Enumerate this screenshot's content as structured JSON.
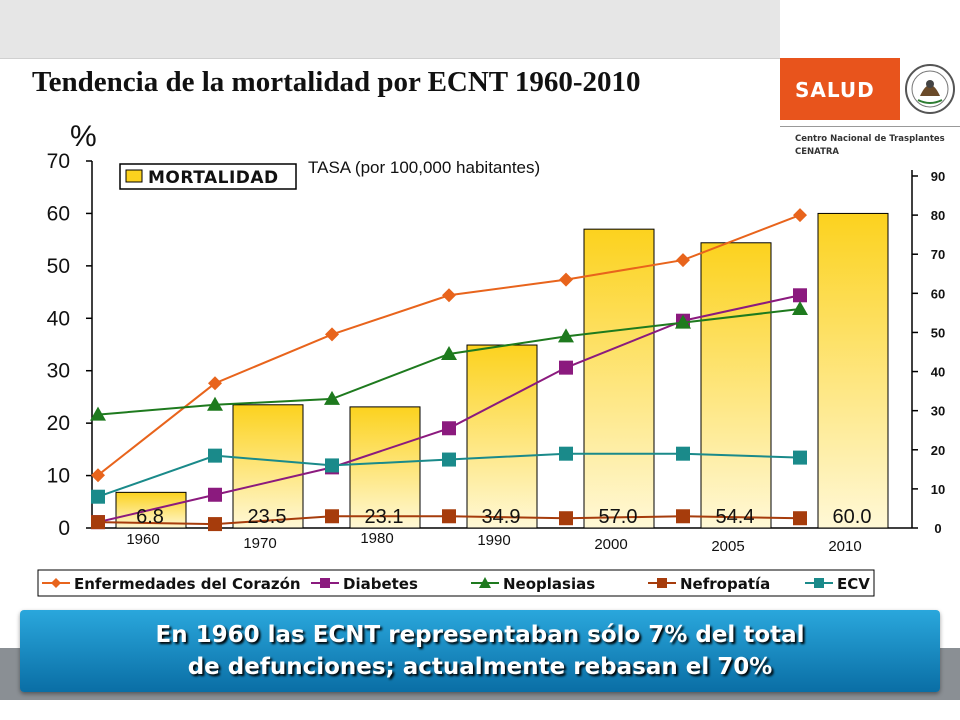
{
  "header": {
    "title": "Tendencia de la mortalidad por ECNT 1960-2010",
    "brand": "SALUD",
    "org_line1": "Centro Nacional de Trasplantes",
    "org_line2": "CENATRA",
    "seal_icon": "coat-of-arms-icon"
  },
  "colors": {
    "bar_top": "#fcd21e",
    "bar_bottom": "#fff8d6",
    "brand_orange": "#e8541c",
    "banner_blue": "#1a8ccc"
  },
  "chart_data": {
    "type": "bar",
    "left_axis_label": "%",
    "right_axis_label": "TASA (por 100,000 habitantes)",
    "categories": [
      "1960",
      "1970",
      "1980",
      "1990",
      "2000",
      "2005",
      "2010"
    ],
    "bar_series": {
      "name": "MORTALIDAD",
      "values": [
        6.8,
        23.5,
        23.1,
        34.9,
        57.0,
        54.4,
        60.0
      ],
      "labels": [
        "6.8",
        "23.5",
        "23.1",
        "34.9",
        "57.0",
        "54.4",
        "60.0"
      ]
    },
    "yleft": {
      "min": 0,
      "max": 70,
      "ticks": [
        "0",
        "10",
        "20",
        "30",
        "40",
        "50",
        "60",
        "70"
      ]
    },
    "yright": {
      "min": 0,
      "max": 90,
      "ticks": [
        "0",
        "10",
        "20",
        "30",
        "40",
        "50",
        "60",
        "70",
        "80",
        "90"
      ]
    },
    "line_series": [
      {
        "name": "Enfermedades del Corazón",
        "color": "#e8641c",
        "marker": "diamond",
        "values": [
          13.5,
          37,
          49.5,
          59.5,
          63.5,
          68.5,
          80
        ]
      },
      {
        "name": "Diabetes",
        "color": "#8b1a7e",
        "marker": "square",
        "values": [
          1.5,
          8.5,
          15.5,
          25.5,
          41,
          53,
          59.5
        ]
      },
      {
        "name": "Neoplasias",
        "color": "#1e7a1e",
        "marker": "triangle",
        "values": [
          29,
          31.5,
          33,
          44.5,
          49,
          52.5,
          56
        ]
      },
      {
        "name": "Nefropatía",
        "color": "#a63c0c",
        "marker": "square",
        "values": [
          1.5,
          1,
          3,
          3,
          2.5,
          3,
          2.5
        ]
      },
      {
        "name": "ECV",
        "color": "#1a8a8a",
        "marker": "square",
        "values": [
          8,
          18.5,
          16,
          17.5,
          19,
          19,
          18
        ]
      }
    ]
  },
  "banner": {
    "line1": "En 1960 las ECNT representaban sólo 7% del total",
    "line2": "de defunciones; actualmente rebasan el 70%"
  }
}
